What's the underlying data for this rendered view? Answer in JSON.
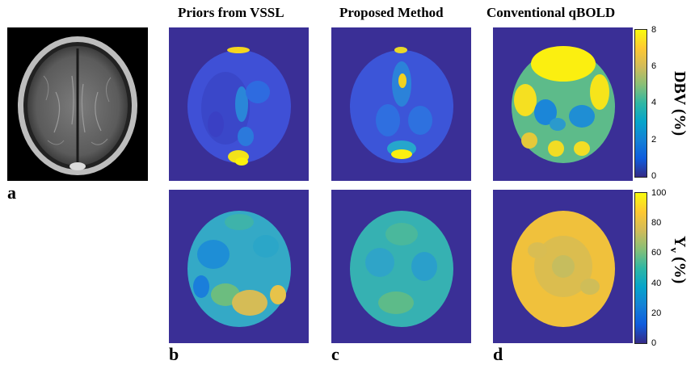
{
  "titles": {
    "col1": "Priors from VSSL",
    "col2": "Proposed Method",
    "col3": "Conventional qBOLD"
  },
  "panel_labels": {
    "a": "a",
    "b": "b",
    "c": "c",
    "d": "d"
  },
  "colorbars": {
    "dbv": {
      "label": "DBV (%)",
      "ticks": [
        "8",
        "6",
        "4",
        "2",
        "0"
      ]
    },
    "yv": {
      "label": "Y",
      "label_sub": "v",
      "label_suffix": " (%)",
      "ticks": [
        "100",
        "80",
        "60",
        "40",
        "20",
        "0"
      ]
    }
  },
  "colors": {
    "background_map": "#3a2f96",
    "parula": [
      "#352a87",
      "#0f5cdd",
      "#1481d6",
      "#06a4ca",
      "#2eb7a4",
      "#87bf77",
      "#d1bb59",
      "#fec832",
      "#f9fb0e"
    ]
  }
}
